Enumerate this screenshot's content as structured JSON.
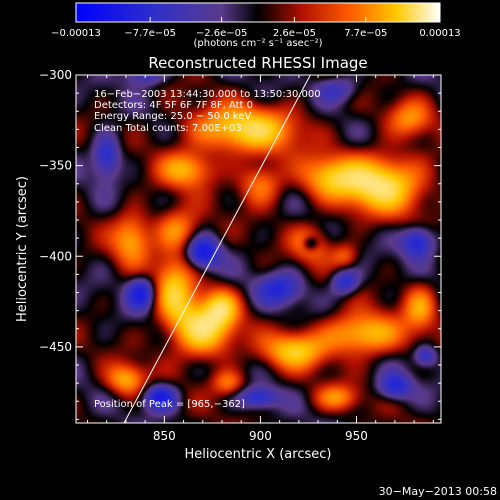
{
  "chart_data": {
    "type": "heatmap",
    "title": "Reconstructed RHESSI Image",
    "xlabel": "Heliocentric X (arcsec)",
    "ylabel": "Heliocentric Y (arcsec)",
    "xlim": [
      804,
      994
    ],
    "ylim": [
      -492,
      -300
    ],
    "x_ticks": [
      850,
      900,
      950
    ],
    "x_tick_labels": [
      "850",
      "900",
      "950"
    ],
    "y_ticks": [
      -300,
      -350,
      -400,
      -450
    ],
    "y_tick_labels": [
      "−300",
      "−350",
      "−400",
      "−450"
    ],
    "colorbar": {
      "min": -0.00013,
      "max": 0.00013,
      "tick_values": [
        -0.00013,
        -7.7e-05,
        -2.6e-05,
        2.6e-05,
        7.7e-05,
        0.00013
      ],
      "tick_labels": [
        "−0.00013",
        "−7.7e−05",
        "−2.6e−05",
        "2.6e−05",
        "7.7e−05",
        "0.00013"
      ],
      "unit_label": "(photons cm⁻² s⁻¹ asec⁻²)"
    },
    "annotations": [
      "16−Feb−2003 13:44:30.000 to 13:50:30.000",
      "Detectors: 4F 5F 6F 7F 8F, Att 0",
      "Energy Range: 25.0 − 50.0 keV",
      "Clean    Total counts: 7.00E+03"
    ],
    "peak_label": "Position of Peak = [965,−362]",
    "peak_position": [
      965,
      -362
    ],
    "limb_line": {
      "x": [
        829,
        926
      ],
      "y": [
        -492,
        -300
      ]
    },
    "blobs": [
      {
        "x": 962,
        "y": -360,
        "sx": 16,
        "sy": 11,
        "a": 1.0
      },
      {
        "x": 935,
        "y": -356,
        "sx": 10,
        "sy": 8,
        "a": 0.55
      },
      {
        "x": 870,
        "y": -440,
        "sx": 11,
        "sy": 11,
        "a": 0.95
      },
      {
        "x": 855,
        "y": -418,
        "sx": 7,
        "sy": 14,
        "a": 0.7
      },
      {
        "x": 880,
        "y": -428,
        "sx": 6,
        "sy": 7,
        "a": 0.55
      },
      {
        "x": 892,
        "y": -330,
        "sx": 20,
        "sy": 9,
        "a": 0.85
      },
      {
        "x": 862,
        "y": -352,
        "sx": 10,
        "sy": 7,
        "a": 0.65
      },
      {
        "x": 900,
        "y": -360,
        "sx": 8,
        "sy": 8,
        "a": 0.55
      },
      {
        "x": 833,
        "y": -390,
        "sx": 7,
        "sy": 10,
        "a": 0.65
      },
      {
        "x": 857,
        "y": -385,
        "sx": 8,
        "sy": 8,
        "a": 0.55
      },
      {
        "x": 830,
        "y": -468,
        "sx": 7,
        "sy": 6,
        "a": 0.65
      },
      {
        "x": 918,
        "y": -452,
        "sx": 11,
        "sy": 7,
        "a": 0.75
      },
      {
        "x": 953,
        "y": -443,
        "sx": 14,
        "sy": 8,
        "a": 0.8
      },
      {
        "x": 983,
        "y": -428,
        "sx": 6,
        "sy": 9,
        "a": 0.55
      },
      {
        "x": 940,
        "y": -478,
        "sx": 8,
        "sy": 5,
        "a": 0.5
      },
      {
        "x": 883,
        "y": -470,
        "sx": 6,
        "sy": 5,
        "a": 0.5
      },
      {
        "x": 978,
        "y": -324,
        "sx": 8,
        "sy": 7,
        "a": 0.5
      },
      {
        "x": 944,
        "y": -400,
        "sx": 5,
        "sy": 5,
        "a": 0.4
      },
      {
        "x": 926,
        "y": -393,
        "sx": 7,
        "sy": 7,
        "a": 0.5
      },
      {
        "x": 926,
        "y": -393,
        "sx": 3,
        "sy": 3,
        "a": -0.55
      },
      {
        "x": 870,
        "y": -398,
        "sx": 6,
        "sy": 6,
        "a": -0.75
      },
      {
        "x": 838,
        "y": -420,
        "sx": 5,
        "sy": 6,
        "a": -0.7
      },
      {
        "x": 820,
        "y": -345,
        "sx": 5,
        "sy": 8,
        "a": -0.6
      },
      {
        "x": 848,
        "y": -478,
        "sx": 6,
        "sy": 5,
        "a": -0.75
      },
      {
        "x": 910,
        "y": -418,
        "sx": 8,
        "sy": 6,
        "a": -0.55
      },
      {
        "x": 944,
        "y": -414,
        "sx": 5,
        "sy": 5,
        "a": -0.6
      },
      {
        "x": 982,
        "y": -392,
        "sx": 6,
        "sy": 6,
        "a": -0.7
      },
      {
        "x": 970,
        "y": -472,
        "sx": 6,
        "sy": 5,
        "a": -0.6
      },
      {
        "x": 899,
        "y": -478,
        "sx": 7,
        "sy": 4,
        "a": -0.55
      },
      {
        "x": 940,
        "y": -308,
        "sx": 8,
        "sy": 5,
        "a": -0.4
      },
      {
        "x": 840,
        "y": -300,
        "sx": 7,
        "sy": 4,
        "a": -0.45
      },
      {
        "x": 986,
        "y": -455,
        "sx": 4,
        "sy": 4,
        "a": -0.5
      }
    ]
  },
  "footer": {
    "date": "30−May−2013 00:58"
  }
}
